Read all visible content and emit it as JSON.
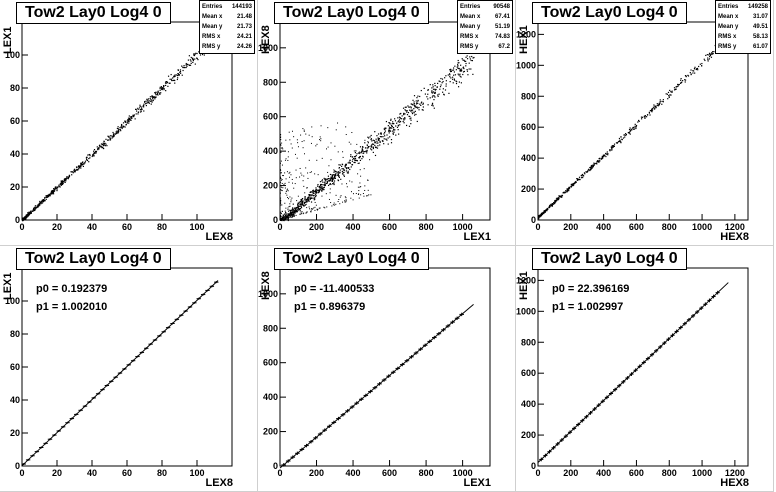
{
  "chart_data": [
    {
      "type": "scatter",
      "title": "Tow2 Lay0 Log4 0",
      "xlabel": "LEX8",
      "ylabel": "LEX1",
      "xlim": [
        0,
        120
      ],
      "ylim": [
        0,
        120
      ],
      "xticks": [
        0,
        20,
        40,
        60,
        80,
        100
      ],
      "yticks": [
        0,
        20,
        40,
        60,
        80,
        100
      ],
      "stats": [
        {
          "label": "Entries",
          "value": "144193"
        },
        {
          "label": "Mean x",
          "value": "21.48"
        },
        {
          "label": "Mean y",
          "value": "21.73"
        },
        {
          "label": "RMS x",
          "value": "24.21"
        },
        {
          "label": "RMS y",
          "value": "24.26"
        }
      ],
      "scatter": {
        "x0": 0,
        "x1": 108,
        "slope": 1.0,
        "intercept": 0.2,
        "spread": 1.2,
        "count": 700,
        "scattered": 0
      }
    },
    {
      "type": "scatter",
      "title": "Tow2 Lay0 Log4 0",
      "xlabel": "LEX1",
      "ylabel": "HEX8",
      "xlim": [
        0,
        1150
      ],
      "ylim": [
        0,
        1150
      ],
      "xticks": [
        0,
        200,
        400,
        600,
        800,
        1000
      ],
      "yticks": [
        0,
        200,
        400,
        600,
        800,
        1000
      ],
      "stats": [
        {
          "label": "Entries",
          "value": "90548"
        },
        {
          "label": "Mean x",
          "value": "67.41"
        },
        {
          "label": "Mean y",
          "value": "51.19"
        },
        {
          "label": "RMS x",
          "value": "74.83"
        },
        {
          "label": "RMS y",
          "value": "67.2"
        }
      ],
      "scatter": {
        "x0": 0,
        "x1": 1060,
        "slope": 0.9,
        "intercept": -11,
        "spread": 30,
        "count": 900,
        "scattered": 350
      }
    },
    {
      "type": "scatter",
      "title": "Tow2 Lay0 Log4 0",
      "xlabel": "HEX8",
      "ylabel": "HEX1",
      "xlim": [
        0,
        1280
      ],
      "ylim": [
        0,
        1280
      ],
      "xticks": [
        0,
        200,
        400,
        600,
        800,
        1000,
        1200
      ],
      "yticks": [
        0,
        200,
        400,
        600,
        800,
        1000,
        1200
      ],
      "stats": [
        {
          "label": "Entries",
          "value": "149258"
        },
        {
          "label": "Mean x",
          "value": "31.07"
        },
        {
          "label": "Mean y",
          "value": "49.51"
        },
        {
          "label": "RMS x",
          "value": "58.13"
        },
        {
          "label": "RMS y",
          "value": "61.07"
        }
      ],
      "scatter": {
        "x0": 0,
        "x1": 1170,
        "slope": 1.0,
        "intercept": 22,
        "spread": 10,
        "count": 500,
        "scattered": 0
      }
    },
    {
      "type": "line",
      "title": "Tow2 Lay0 Log4 0",
      "xlabel": "LEX8",
      "ylabel": "LEX1",
      "xlim": [
        0,
        120
      ],
      "ylim": [
        0,
        120
      ],
      "xticks": [
        0,
        20,
        40,
        60,
        80,
        100
      ],
      "yticks": [
        0,
        20,
        40,
        60,
        80,
        100
      ],
      "fit": {
        "p0": 0.192379,
        "p1": 1.00201,
        "p0_text": "p0 = 0.192379",
        "p1_text": "p1 = 1.002010",
        "x0": 0,
        "x1": 112
      },
      "profile": {
        "x0": 1,
        "x1": 111,
        "step": 2.5,
        "err": 0.6
      }
    },
    {
      "type": "line",
      "title": "Tow2 Lay0 Log4 0",
      "xlabel": "LEX1",
      "ylabel": "HEX8",
      "xlim": [
        0,
        1150
      ],
      "ylim": [
        0,
        1150
      ],
      "xticks": [
        0,
        200,
        400,
        600,
        800,
        1000
      ],
      "yticks": [
        0,
        200,
        400,
        600,
        800,
        1000
      ],
      "fit": {
        "p0": -11.400533,
        "p1": 0.896379,
        "p0_text": "p0 = -11.400533",
        "p1_text": "p1 = 0.896379",
        "x0": 0,
        "x1": 1060
      },
      "profile": {
        "x0": 20,
        "x1": 1000,
        "step": 25,
        "err": 10
      }
    },
    {
      "type": "line",
      "title": "Tow2 Lay0 Log4 0",
      "xlabel": "HEX8",
      "ylabel": "HEX1",
      "xlim": [
        0,
        1280
      ],
      "ylim": [
        0,
        1280
      ],
      "xticks": [
        0,
        200,
        400,
        600,
        800,
        1000,
        1200
      ],
      "yticks": [
        0,
        200,
        400,
        600,
        800,
        1000,
        1200
      ],
      "fit": {
        "p0": 22.396169,
        "p1": 1.002997,
        "p0_text": "p0 = 22.396169",
        "p1_text": "p1 = 1.002997",
        "x0": 0,
        "x1": 1160
      },
      "profile": {
        "x0": 20,
        "x1": 1100,
        "step": 25,
        "err": 12
      }
    }
  ]
}
